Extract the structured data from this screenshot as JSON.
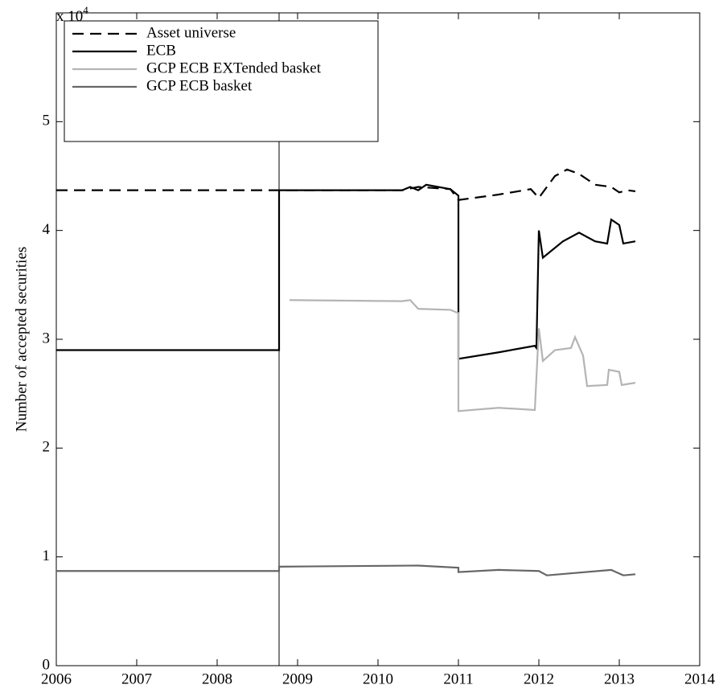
{
  "chart_data": {
    "type": "line",
    "ylabel": "Number of accepted securities",
    "multiplier": {
      "base": "x 10",
      "exponent": "4"
    },
    "xlim": [
      2006,
      2014
    ],
    "xticks": [
      2006,
      2007,
      2008,
      2009,
      2010,
      2011,
      2012,
      2013,
      2014
    ],
    "ylim": [
      0,
      6
    ],
    "yticks": [
      0,
      1,
      2,
      3,
      4,
      5
    ],
    "vline": 2008.77,
    "legend": "upper left",
    "series": [
      {
        "name": "Asset universe",
        "color": "#000000",
        "dash": true,
        "x": [
          2006,
          2008.77,
          2010.3,
          2010.5,
          2010.9,
          2011.0,
          2011.5,
          2011.9,
          2012.0,
          2012.1,
          2012.2,
          2012.35,
          2012.5,
          2012.7,
          2012.9,
          2013.0,
          2013.1,
          2013.2
        ],
        "values": [
          4.37,
          4.37,
          4.37,
          4.4,
          4.38,
          4.28,
          4.33,
          4.38,
          4.3,
          4.4,
          4.5,
          4.56,
          4.52,
          4.42,
          4.4,
          4.35,
          4.37,
          4.36
        ]
      },
      {
        "name": "ECB",
        "color": "#000000",
        "dash": false,
        "x": [
          2006,
          2008.77,
          2008.77,
          2010.3,
          2010.4,
          2010.5,
          2010.6,
          2010.9,
          2011.0,
          2011.0,
          2011.5,
          2011.95,
          2011.97,
          2012.0,
          2012.05,
          2012.3,
          2012.5,
          2012.7,
          2012.85,
          2012.9,
          2013.0,
          2013.05,
          2013.2
        ],
        "values": [
          2.9,
          2.9,
          4.37,
          4.37,
          4.4,
          4.37,
          4.42,
          4.38,
          4.32,
          2.82,
          2.88,
          2.94,
          2.92,
          4.0,
          3.75,
          3.9,
          3.98,
          3.9,
          3.88,
          4.1,
          4.05,
          3.88,
          3.9
        ]
      },
      {
        "name": "GCP ECB EXTended basket",
        "color": "#b4b4b4",
        "dash": false,
        "x": [
          2008.9,
          2010.3,
          2010.4,
          2010.5,
          2010.9,
          2011.0,
          2011.0,
          2011.5,
          2011.95,
          2012.0,
          2012.05,
          2012.2,
          2012.4,
          2012.45,
          2012.55,
          2012.6,
          2012.85,
          2012.87,
          2013.0,
          2013.03,
          2013.2
        ],
        "values": [
          3.36,
          3.35,
          3.36,
          3.28,
          3.27,
          3.24,
          2.34,
          2.37,
          2.35,
          3.1,
          2.8,
          2.9,
          2.92,
          3.02,
          2.85,
          2.57,
          2.58,
          2.72,
          2.7,
          2.58,
          2.6
        ]
      },
      {
        "name": "GCP ECB basket",
        "color": "#666666",
        "dash": false,
        "x": [
          2006,
          2008.77,
          2008.77,
          2010.5,
          2011.0,
          2011.0,
          2011.5,
          2012.0,
          2012.1,
          2012.9,
          2013.05,
          2013.2
        ],
        "values": [
          0.87,
          0.87,
          0.91,
          0.92,
          0.9,
          0.86,
          0.88,
          0.87,
          0.83,
          0.88,
          0.83,
          0.84
        ]
      }
    ]
  }
}
